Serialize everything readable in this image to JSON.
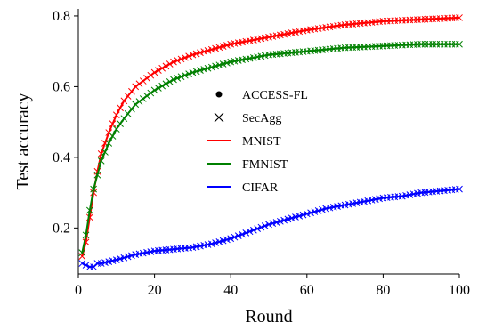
{
  "chart_data": {
    "type": "line",
    "title": "",
    "xlabel": "Round",
    "ylabel": "Test accuracy",
    "xlim": [
      0,
      100
    ],
    "ylim": [
      0.07,
      0.82
    ],
    "xticks": [
      0,
      20,
      40,
      60,
      80,
      100
    ],
    "yticks": [
      0.2,
      0.4,
      0.6,
      0.8
    ],
    "grid": false,
    "legend_position": "center",
    "legend": [
      {
        "label": "ACCESS-FL",
        "marker": "dot",
        "color": "#000000"
      },
      {
        "label": "SecAgg",
        "marker": "x",
        "color": "#000000"
      },
      {
        "label": "MNIST",
        "marker": "line",
        "color": "#ff0000"
      },
      {
        "label": "FMNIST",
        "marker": "line",
        "color": "#008000"
      },
      {
        "label": "CIFAR",
        "marker": "line",
        "color": "#0000ff"
      }
    ],
    "series": [
      {
        "name": "MNIST",
        "color": "#ff0000",
        "x": [
          1,
          2,
          3,
          4,
          5,
          6,
          8,
          10,
          12,
          15,
          20,
          25,
          30,
          40,
          50,
          60,
          70,
          80,
          90,
          100
        ],
        "y": [
          0.12,
          0.16,
          0.23,
          0.3,
          0.36,
          0.41,
          0.47,
          0.52,
          0.56,
          0.6,
          0.64,
          0.67,
          0.69,
          0.72,
          0.74,
          0.76,
          0.775,
          0.785,
          0.79,
          0.795
        ]
      },
      {
        "name": "FMNIST",
        "color": "#008000",
        "x": [
          1,
          2,
          3,
          4,
          5,
          6,
          8,
          10,
          12,
          15,
          20,
          25,
          30,
          40,
          50,
          60,
          70,
          80,
          90,
          100
        ],
        "y": [
          0.13,
          0.18,
          0.25,
          0.31,
          0.35,
          0.39,
          0.44,
          0.48,
          0.51,
          0.55,
          0.59,
          0.62,
          0.64,
          0.67,
          0.69,
          0.7,
          0.71,
          0.715,
          0.72,
          0.72
        ]
      },
      {
        "name": "CIFAR",
        "color": "#0000ff",
        "x": [
          1,
          2,
          3,
          4,
          5,
          6,
          8,
          10,
          15,
          20,
          25,
          30,
          35,
          40,
          45,
          50,
          55,
          60,
          65,
          70,
          75,
          80,
          85,
          90,
          95,
          100
        ],
        "y": [
          0.1,
          0.095,
          0.09,
          0.09,
          0.1,
          0.1,
          0.105,
          0.11,
          0.125,
          0.135,
          0.14,
          0.145,
          0.155,
          0.17,
          0.19,
          0.21,
          0.225,
          0.24,
          0.255,
          0.265,
          0.275,
          0.285,
          0.29,
          0.3,
          0.305,
          0.31
        ]
      }
    ]
  }
}
